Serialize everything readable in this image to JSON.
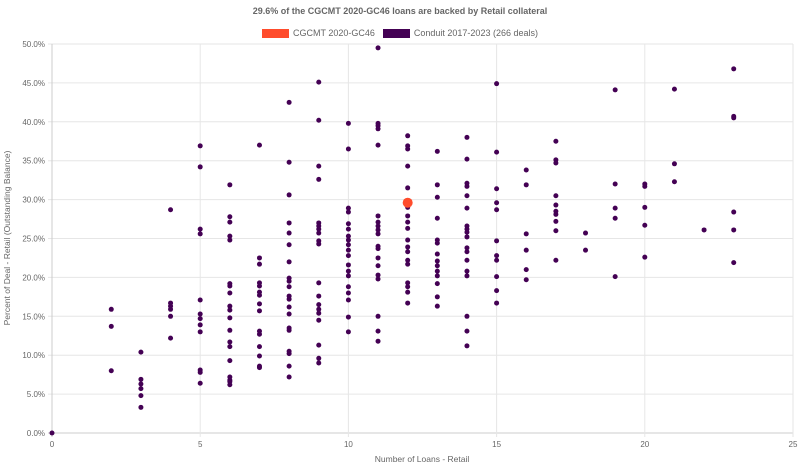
{
  "chart_data": {
    "type": "scatter",
    "title": "29.6% of the CGCMT 2020-GC46 loans are backed by Retail collateral",
    "xlabel": "Number of Loans - Retail",
    "ylabel": "Percent of Deal - Retail (Outstanding Balance)",
    "xlim": [
      0,
      25
    ],
    "ylim": [
      0,
      50
    ],
    "x_ticks": [
      "0",
      "5",
      "10",
      "15",
      "20",
      "25"
    ],
    "y_ticks": [
      "0.0%",
      "5.0%",
      "10.0%",
      "15.0%",
      "20.0%",
      "25.0%",
      "30.0%",
      "35.0%",
      "40.0%",
      "45.0%",
      "50.0%"
    ],
    "grid": true,
    "legend_position": "top",
    "series": [
      {
        "name": "CGCMT 2020-GC46",
        "color": "#ff4c2c",
        "points": [
          [
            12,
            29.6
          ]
        ]
      },
      {
        "name": "Conduit 2017-2023 (266 deals)",
        "color": "#440154",
        "points": [
          [
            0,
            0
          ],
          [
            2,
            15.9
          ],
          [
            2,
            13.7
          ],
          [
            2,
            8.0
          ],
          [
            3,
            10.4
          ],
          [
            3,
            6.9
          ],
          [
            3,
            6.3
          ],
          [
            3,
            5.7
          ],
          [
            3,
            4.8
          ],
          [
            3,
            3.3
          ],
          [
            4,
            28.7
          ],
          [
            4,
            16.7
          ],
          [
            4,
            16.3
          ],
          [
            4,
            15.9
          ],
          [
            4,
            15.0
          ],
          [
            4,
            12.2
          ],
          [
            5,
            36.9
          ],
          [
            5,
            34.2
          ],
          [
            5,
            26.2
          ],
          [
            5,
            25.6
          ],
          [
            5,
            17.1
          ],
          [
            5,
            15.3
          ],
          [
            5,
            14.7
          ],
          [
            5,
            13.9
          ],
          [
            5,
            13.0
          ],
          [
            5,
            8.1
          ],
          [
            5,
            7.8
          ],
          [
            5,
            6.4
          ],
          [
            6,
            31.9
          ],
          [
            6,
            27.8
          ],
          [
            6,
            27.1
          ],
          [
            6,
            25.3
          ],
          [
            6,
            24.8
          ],
          [
            6,
            19.2
          ],
          [
            6,
            18.9
          ],
          [
            6,
            18.0
          ],
          [
            6,
            16.3
          ],
          [
            6,
            15.8
          ],
          [
            6,
            14.8
          ],
          [
            6,
            13.2
          ],
          [
            6,
            11.7
          ],
          [
            6,
            11.1
          ],
          [
            6,
            9.3
          ],
          [
            6,
            7.2
          ],
          [
            6,
            6.8
          ],
          [
            6,
            6.6
          ],
          [
            6,
            6.2
          ],
          [
            7,
            37.0
          ],
          [
            7,
            22.5
          ],
          [
            7,
            21.7
          ],
          [
            7,
            19.3
          ],
          [
            7,
            18.9
          ],
          [
            7,
            18.1
          ],
          [
            7,
            17.7
          ],
          [
            7,
            16.6
          ],
          [
            7,
            15.7
          ],
          [
            7,
            13.1
          ],
          [
            7,
            12.7
          ],
          [
            7,
            11.1
          ],
          [
            7,
            9.9
          ],
          [
            7,
            8.6
          ],
          [
            7,
            8.4
          ],
          [
            8,
            42.5
          ],
          [
            8,
            34.8
          ],
          [
            8,
            30.6
          ],
          [
            8,
            27.0
          ],
          [
            8,
            25.7
          ],
          [
            8,
            24.2
          ],
          [
            8,
            22.0
          ],
          [
            8,
            19.9
          ],
          [
            8,
            19.5
          ],
          [
            8,
            18.8
          ],
          [
            8,
            17.6
          ],
          [
            8,
            17.2
          ],
          [
            8,
            16.2
          ],
          [
            8,
            15.3
          ],
          [
            8,
            13.5
          ],
          [
            8,
            13.2
          ],
          [
            8,
            10.5
          ],
          [
            8,
            10.2
          ],
          [
            8,
            8.6
          ],
          [
            8,
            7.2
          ],
          [
            9,
            45.1
          ],
          [
            9,
            40.2
          ],
          [
            9,
            34.3
          ],
          [
            9,
            32.6
          ],
          [
            9,
            27.0
          ],
          [
            9,
            26.6
          ],
          [
            9,
            26.2
          ],
          [
            9,
            25.7
          ],
          [
            9,
            24.7
          ],
          [
            9,
            24.3
          ],
          [
            9,
            19.3
          ],
          [
            9,
            17.6
          ],
          [
            9,
            16.5
          ],
          [
            9,
            15.9
          ],
          [
            9,
            15.4
          ],
          [
            9,
            14.5
          ],
          [
            9,
            11.3
          ],
          [
            9,
            9.6
          ],
          [
            9,
            9.0
          ],
          [
            10,
            39.8
          ],
          [
            10,
            36.5
          ],
          [
            10,
            28.9
          ],
          [
            10,
            28.4
          ],
          [
            10,
            26.9
          ],
          [
            10,
            26.2
          ],
          [
            10,
            25.3
          ],
          [
            10,
            24.8
          ],
          [
            10,
            24.2
          ],
          [
            10,
            23.5
          ],
          [
            10,
            22.8
          ],
          [
            10,
            21.6
          ],
          [
            10,
            20.8
          ],
          [
            10,
            20.2
          ],
          [
            10,
            18.8
          ],
          [
            10,
            18.0
          ],
          [
            10,
            17.1
          ],
          [
            10,
            14.9
          ],
          [
            10,
            13.0
          ],
          [
            11,
            49.5
          ],
          [
            11,
            39.8
          ],
          [
            11,
            39.5
          ],
          [
            11,
            39.1
          ],
          [
            11,
            37.0
          ],
          [
            11,
            27.9
          ],
          [
            11,
            27.1
          ],
          [
            11,
            26.6
          ],
          [
            11,
            26.1
          ],
          [
            11,
            25.6
          ],
          [
            11,
            24.0
          ],
          [
            11,
            23.7
          ],
          [
            11,
            22.5
          ],
          [
            11,
            21.5
          ],
          [
            11,
            20.3
          ],
          [
            11,
            19.8
          ],
          [
            11,
            15.0
          ],
          [
            11,
            13.1
          ],
          [
            11,
            11.8
          ],
          [
            12,
            38.2
          ],
          [
            12,
            36.9
          ],
          [
            12,
            36.5
          ],
          [
            12,
            34.3
          ],
          [
            12,
            31.5
          ],
          [
            12,
            29.0
          ],
          [
            12,
            27.9
          ],
          [
            12,
            27.1
          ],
          [
            12,
            26.3
          ],
          [
            12,
            24.8
          ],
          [
            12,
            23.9
          ],
          [
            12,
            23.3
          ],
          [
            12,
            22.2
          ],
          [
            12,
            21.7
          ],
          [
            12,
            19.3
          ],
          [
            12,
            18.8
          ],
          [
            12,
            18.1
          ],
          [
            12,
            16.7
          ],
          [
            13,
            36.2
          ],
          [
            13,
            31.9
          ],
          [
            13,
            30.3
          ],
          [
            13,
            27.6
          ],
          [
            13,
            24.8
          ],
          [
            13,
            24.4
          ],
          [
            13,
            23.0
          ],
          [
            13,
            22.1
          ],
          [
            13,
            21.5
          ],
          [
            13,
            20.8
          ],
          [
            13,
            20.2
          ],
          [
            13,
            19.2
          ],
          [
            13,
            17.5
          ],
          [
            13,
            16.3
          ],
          [
            14,
            38.0
          ],
          [
            14,
            35.2
          ],
          [
            14,
            32.1
          ],
          [
            14,
            31.7
          ],
          [
            14,
            30.5
          ],
          [
            14,
            28.9
          ],
          [
            14,
            26.6
          ],
          [
            14,
            26.2
          ],
          [
            14,
            25.8
          ],
          [
            14,
            25.2
          ],
          [
            14,
            23.8
          ],
          [
            14,
            23.3
          ],
          [
            14,
            22.2
          ],
          [
            14,
            20.8
          ],
          [
            14,
            20.2
          ],
          [
            14,
            15.0
          ],
          [
            14,
            13.1
          ],
          [
            14,
            11.2
          ],
          [
            15,
            44.9
          ],
          [
            15,
            36.1
          ],
          [
            15,
            31.4
          ],
          [
            15,
            29.6
          ],
          [
            15,
            28.7
          ],
          [
            15,
            24.7
          ],
          [
            15,
            22.8
          ],
          [
            15,
            22.2
          ],
          [
            15,
            20.1
          ],
          [
            15,
            18.3
          ],
          [
            15,
            16.7
          ],
          [
            16,
            33.8
          ],
          [
            16,
            31.9
          ],
          [
            16,
            25.6
          ],
          [
            16,
            23.5
          ],
          [
            16,
            21.0
          ],
          [
            16,
            19.7
          ],
          [
            17,
            37.5
          ],
          [
            17,
            35.1
          ],
          [
            17,
            34.7
          ],
          [
            17,
            30.5
          ],
          [
            17,
            29.3
          ],
          [
            17,
            28.5
          ],
          [
            17,
            28.1
          ],
          [
            17,
            27.2
          ],
          [
            17,
            26.0
          ],
          [
            17,
            22.2
          ],
          [
            18,
            25.7
          ],
          [
            18,
            23.5
          ],
          [
            19,
            44.1
          ],
          [
            19,
            32.0
          ],
          [
            19,
            28.9
          ],
          [
            19,
            27.6
          ],
          [
            19,
            20.1
          ],
          [
            20,
            32.0
          ],
          [
            20,
            31.7
          ],
          [
            20,
            29.0
          ],
          [
            20,
            26.7
          ],
          [
            20,
            22.6
          ],
          [
            21,
            44.2
          ],
          [
            21,
            34.6
          ],
          [
            21,
            32.3
          ],
          [
            22,
            26.1
          ],
          [
            23,
            46.8
          ],
          [
            23,
            40.7
          ],
          [
            23,
            40.5
          ],
          [
            23,
            28.4
          ],
          [
            23,
            26.1
          ],
          [
            23,
            21.9
          ]
        ]
      }
    ]
  }
}
